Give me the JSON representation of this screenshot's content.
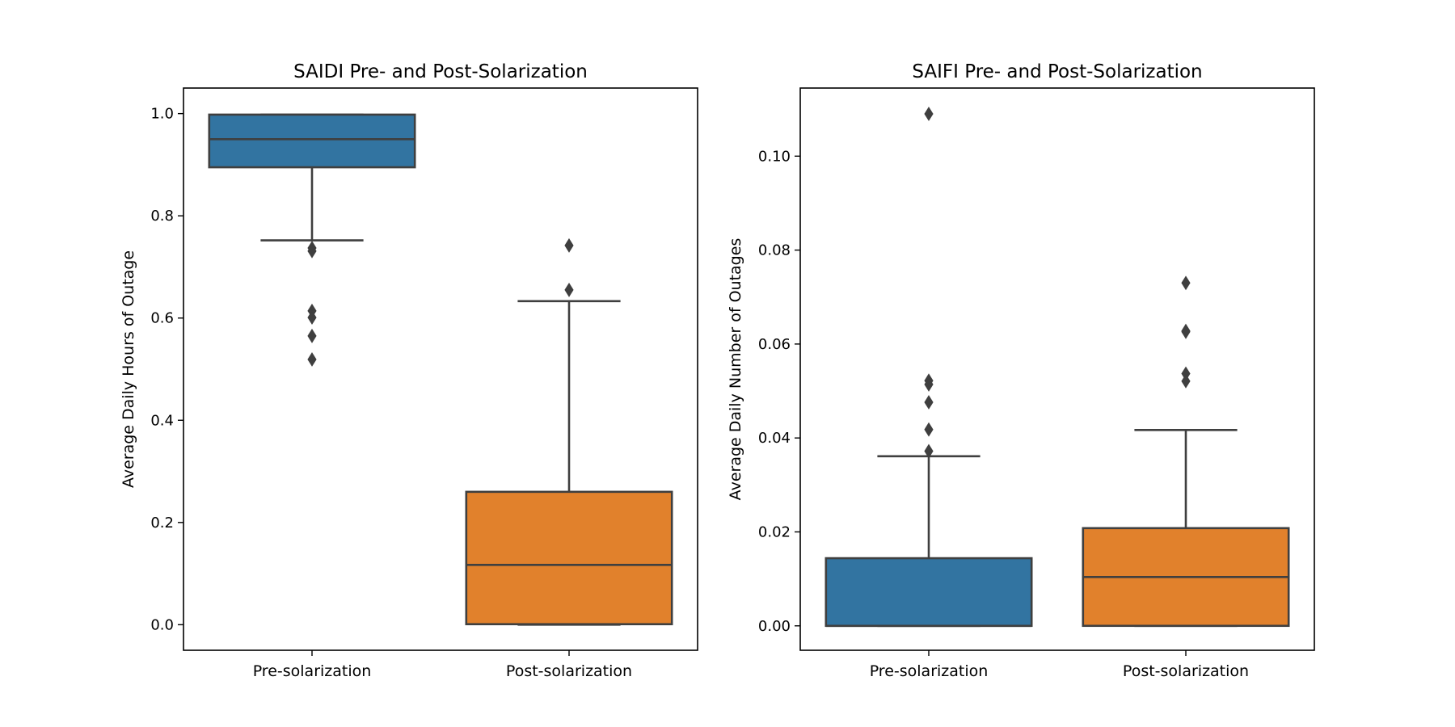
{
  "chart_data": [
    {
      "type": "box",
      "title": "SAIDI Pre- and Post-Solarization",
      "xlabel": "",
      "ylabel": "Average Daily Hours of Outage",
      "ylim": [
        -0.05,
        1.05
      ],
      "yticks": [
        0.0,
        0.2,
        0.4,
        0.6,
        0.8,
        1.0
      ],
      "ytick_labels": [
        "0.0",
        "0.2",
        "0.4",
        "0.6",
        "0.8",
        "1.0"
      ],
      "grid": false,
      "categories": [
        "Pre-solarization",
        "Post-solarization"
      ],
      "boxes": [
        {
          "category": "Pre-solarization",
          "color": "#3274a1",
          "whislo": 0.752,
          "q1": 0.895,
          "median": 0.95,
          "q3": 0.998,
          "whishi": 0.998,
          "fliers": [
            0.737,
            0.731,
            0.614,
            0.601,
            0.565,
            0.519
          ]
        },
        {
          "category": "Post-solarization",
          "color": "#e1812c",
          "whislo": 0.0,
          "q1": 0.001,
          "median": 0.117,
          "q3": 0.26,
          "whishi": 0.633,
          "fliers": [
            0.742,
            0.655
          ]
        }
      ]
    },
    {
      "type": "box",
      "title": "SAIFI Pre- and Post-Solarization",
      "xlabel": "",
      "ylabel": "Average Daily Number of Outages",
      "ylim": [
        -0.0052,
        0.1145
      ],
      "yticks": [
        0.0,
        0.02,
        0.04,
        0.06,
        0.08,
        0.1
      ],
      "ytick_labels": [
        "0.00",
        "0.02",
        "0.04",
        "0.06",
        "0.08",
        "0.10"
      ],
      "grid": false,
      "categories": [
        "Pre-solarization",
        "Post-solarization"
      ],
      "boxes": [
        {
          "category": "Pre-solarization",
          "color": "#3274a1",
          "whislo": 0.0,
          "q1": 0.0,
          "median": 0.0,
          "q3": 0.0144,
          "whishi": 0.0361,
          "fliers": [
            0.109,
            0.0522,
            0.0514,
            0.0476,
            0.0418,
            0.0372
          ]
        },
        {
          "category": "Post-solarization",
          "color": "#e1812c",
          "whislo": 0.0,
          "q1": 0.0,
          "median": 0.0104,
          "q3": 0.0208,
          "whishi": 0.0417,
          "fliers": [
            0.073,
            0.0628,
            0.0626,
            0.0537,
            0.0521
          ]
        }
      ]
    }
  ]
}
